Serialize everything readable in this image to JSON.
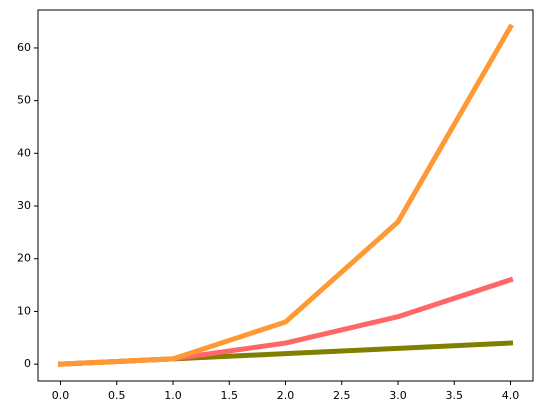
{
  "chart_data": {
    "type": "line",
    "x": [
      0,
      1,
      2,
      3,
      4
    ],
    "series": [
      {
        "color": "#808000",
        "values": [
          0,
          1,
          2,
          3,
          4
        ]
      },
      {
        "color": "#ff6666",
        "values": [
          0,
          1,
          4,
          9,
          16
        ]
      },
      {
        "color": "#ff9933",
        "values": [
          0,
          1,
          8,
          27,
          64
        ]
      }
    ],
    "xlim": [
      -0.2,
      4.2
    ],
    "ylim": [
      -3.2,
      67.2
    ],
    "xticks": [
      {
        "value": 0,
        "label": "0.0"
      },
      {
        "value": 0.5,
        "label": "0.5"
      },
      {
        "value": 1,
        "label": "1.0"
      },
      {
        "value": 1.5,
        "label": "1.5"
      },
      {
        "value": 2,
        "label": "2.0"
      },
      {
        "value": 2.5,
        "label": "2.5"
      },
      {
        "value": 3,
        "label": "3.0"
      },
      {
        "value": 3.5,
        "label": "3.5"
      },
      {
        "value": 4,
        "label": "4.0"
      }
    ],
    "yticks": [
      0,
      10,
      20,
      30,
      40,
      50,
      60
    ],
    "linewidth": 5
  }
}
